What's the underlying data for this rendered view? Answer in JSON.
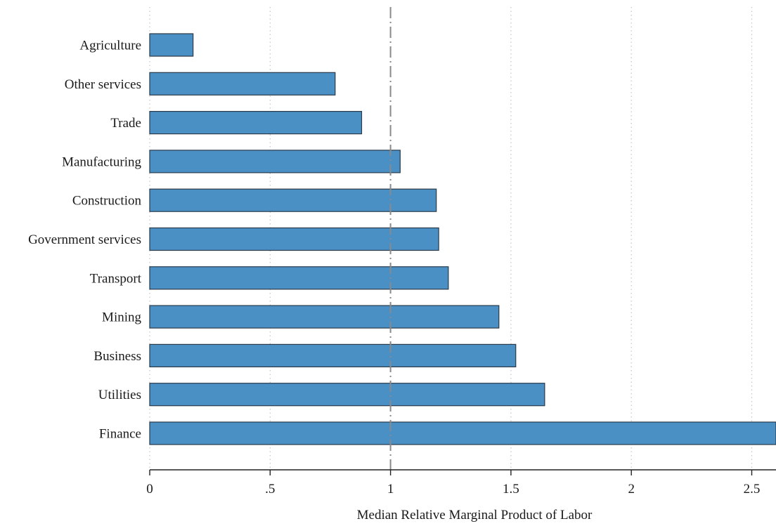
{
  "chart_data": {
    "type": "bar",
    "orientation": "horizontal",
    "categories": [
      "Agriculture",
      "Other services",
      "Trade",
      "Manufacturing",
      "Construction",
      "Government services",
      "Transport",
      "Mining",
      "Business",
      "Utilities",
      "Finance"
    ],
    "values": [
      0.18,
      0.77,
      0.88,
      1.04,
      1.19,
      1.2,
      1.24,
      1.45,
      1.52,
      1.64,
      2.65
    ],
    "xlabel": "Median Relative Marginal Product of Labor",
    "ylabel": "",
    "xlim": [
      0,
      2.6
    ],
    "xticks": [
      0,
      0.5,
      1,
      1.5,
      2,
      2.5
    ],
    "xtick_labels": [
      "0",
      ".5",
      "1",
      "1.5",
      "2",
      "2.5"
    ],
    "reference_line": 1,
    "grid": "vertical dotted",
    "bar_color": "#4a90c4",
    "bar_edge_color": "#2a3a4a"
  }
}
